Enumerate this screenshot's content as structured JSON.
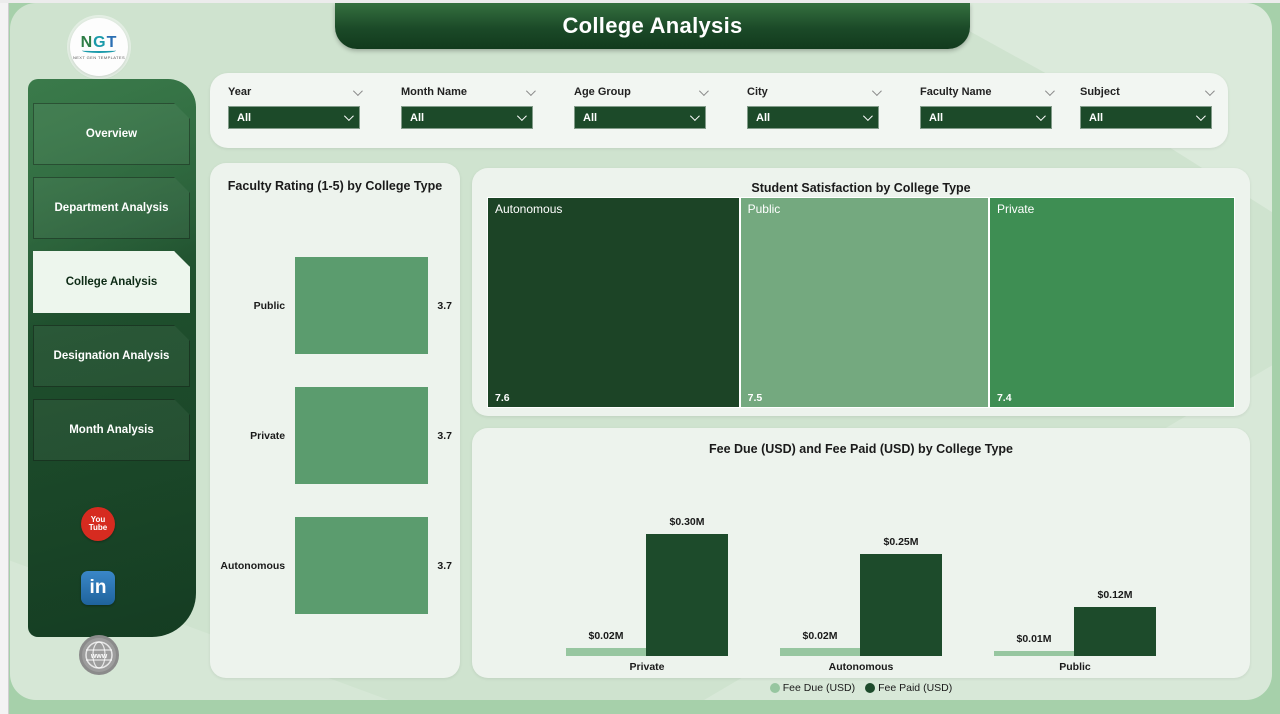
{
  "page": {
    "title": "College Analysis"
  },
  "logo": {
    "text_n": "N",
    "text_g": "G",
    "text_t": "T",
    "tagline": "NEXT GEN TEMPLATES"
  },
  "sidebar": {
    "items": [
      {
        "label": "Overview",
        "active": false
      },
      {
        "label": "Department Analysis",
        "active": false
      },
      {
        "label": "College Analysis",
        "active": true
      },
      {
        "label": "Designation Analysis",
        "active": false
      },
      {
        "label": "Month Analysis",
        "active": false
      }
    ]
  },
  "social": {
    "youtube_line1": "You",
    "youtube_line2": "Tube",
    "linkedin": "in",
    "globe": "www"
  },
  "filters": {
    "items": [
      {
        "label": "Year",
        "value": "All"
      },
      {
        "label": "Month Name",
        "value": "All"
      },
      {
        "label": "Age Group",
        "value": "All"
      },
      {
        "label": "City",
        "value": "All"
      },
      {
        "label": "Faculty Name",
        "value": "All"
      },
      {
        "label": "Subject",
        "value": "All"
      }
    ]
  },
  "colors": {
    "canvas_bg": "#cfe3cf",
    "page_bg": "#a6d0aa",
    "header_green": "#1b4a28",
    "card_bg": "#edf3ed",
    "faculty_bar": "#5b9c6e",
    "fee_due": "#97c6a0",
    "fee_paid": "#1d4b2b",
    "treemap_autonomous": "#1c4426",
    "treemap_public": "#74a97f",
    "treemap_private": "#3e8e53"
  },
  "chart_data": [
    {
      "id": "faculty_rating",
      "type": "bar",
      "orientation": "horizontal",
      "title": "Faculty Rating (1-5) by College Type",
      "categories": [
        "Public",
        "Private",
        "Autonomous"
      ],
      "values": [
        3.7,
        3.7,
        3.7
      ],
      "value_labels": [
        "3.7",
        "3.7",
        "3.7"
      ],
      "xlim": [
        0,
        3.7
      ],
      "bar_color": "#5b9c6e",
      "grid": false,
      "legend": "none"
    },
    {
      "id": "student_satisfaction",
      "type": "treemap",
      "title": "Student Satisfaction by College Type",
      "categories": [
        "Autonomous",
        "Public",
        "Private"
      ],
      "values": [
        7.6,
        7.5,
        7.4
      ],
      "value_labels": [
        "7.6",
        "7.5",
        "7.4"
      ],
      "colors": [
        "#1c4426",
        "#74a97f",
        "#3e8e53"
      ],
      "legend": "none"
    },
    {
      "id": "fees",
      "type": "bar",
      "orientation": "vertical",
      "title": "Fee Due (USD) and Fee Paid (USD) by College Type",
      "categories": [
        "Private",
        "Autonomous",
        "Public"
      ],
      "series": [
        {
          "name": "Fee Due (USD)",
          "color": "#97c6a0",
          "values": [
            0.02,
            0.02,
            0.01
          ],
          "labels": [
            "$0.02M",
            "$0.02M",
            "$0.01M"
          ]
        },
        {
          "name": "Fee Paid (USD)",
          "color": "#1d4b2b",
          "values": [
            0.3,
            0.25,
            0.12
          ],
          "labels": [
            "$0.30M",
            "$0.25M",
            "$0.12M"
          ]
        }
      ],
      "ylim": [
        0,
        0.32
      ],
      "grid": false,
      "legend_position": "bottom-center"
    }
  ]
}
